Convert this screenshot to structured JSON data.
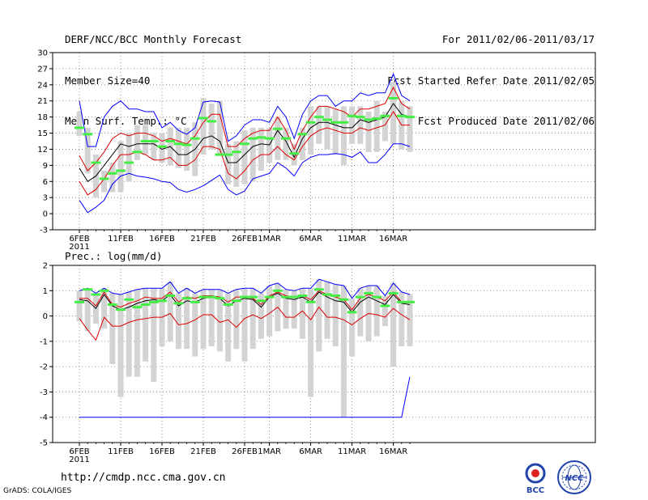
{
  "header": {
    "left": [
      "DERF/NCC/BCC Monthly Forecast",
      "Member Size=40",
      "Mean Surf. Temp.: °C"
    ],
    "right": [
      "For 2011/02/06-2011/03/17",
      "Fcst Started Refer Date 2011/02/05",
      "Fcst Produced Date 2011/02/06"
    ]
  },
  "footer": {
    "url": "http://cmdp.ncc.cma.gov.cn",
    "credit": "GrADS: COLA/IGES",
    "logo_left_text": "BCC",
    "logo_right_text": "NCC"
  },
  "colors": {
    "max_line": "#0000ff",
    "pct_line": "#dd0000",
    "mean_line": "#000000",
    "median_mark": "#44ee44",
    "box": "#d3d3d3"
  },
  "chart_data": [
    {
      "id": "temp",
      "type": "line",
      "title": "Mean Surf. Temp.: °C",
      "ylim": [
        -3,
        30
      ],
      "yticks": [
        -3,
        0,
        3,
        6,
        9,
        12,
        15,
        18,
        21,
        24,
        27,
        30
      ],
      "xticks": [
        {
          "day": 0,
          "label": "6FEB"
        },
        {
          "day": 5,
          "label": "11FEB"
        },
        {
          "day": 10,
          "label": "16FEB"
        },
        {
          "day": 15,
          "label": "21FEB"
        },
        {
          "day": 20,
          "label": "26FEB"
        },
        {
          "day": 23,
          "label": "1MAR"
        },
        {
          "day": 28,
          "label": "6MAR"
        },
        {
          "day": 33,
          "label": "11MAR"
        },
        {
          "day": 38,
          "label": "16MAR"
        }
      ],
      "year_label": "2011",
      "grid": true,
      "series": [
        {
          "name": "max",
          "values": [
            2.5,
            0.2,
            1.2,
            2.5,
            5.5,
            7,
            7.5,
            7,
            6.8,
            6.5,
            6,
            5.8,
            4.5,
            4,
            4.5,
            5.2,
            6.2,
            7.2,
            4.5,
            3.5,
            4.2,
            6.5,
            7,
            7.5,
            9.5,
            8.5,
            7,
            9.5,
            10.5,
            11,
            11,
            11.2,
            11,
            10.5,
            11.5,
            9.5,
            9.5,
            11,
            13,
            13,
            12.5
          ]
        },
        {
          "name": "p90",
          "values": [
            21,
            12.5,
            12.5,
            18,
            20,
            21,
            19.5,
            19.5,
            19,
            19,
            16,
            17,
            15.5,
            14.8,
            16,
            20.8,
            21,
            20.8,
            13.5,
            14.5,
            16.5,
            17.5,
            17.5,
            17,
            20,
            18,
            14,
            18.5,
            21,
            22,
            22,
            20,
            21,
            21,
            22.5,
            22,
            22.5,
            22.5,
            26,
            22,
            21
          ]
        },
        {
          "name": "p75",
          "values": [
            10.8,
            8,
            9.5,
            11.5,
            14,
            15,
            14.5,
            15,
            15,
            14.5,
            13.5,
            14,
            13.5,
            13,
            14.5,
            17,
            18.5,
            18.5,
            12.5,
            12.5,
            14,
            15,
            15.5,
            15.5,
            18,
            15.5,
            12,
            15.5,
            18,
            20,
            20,
            19.5,
            19,
            18,
            19.5,
            19.5,
            20,
            20.5,
            23.5,
            20.5,
            19.5
          ]
        },
        {
          "name": "mean",
          "values": [
            8.5,
            6,
            7,
            9,
            11,
            13,
            12.5,
            13,
            13,
            13,
            12,
            12.5,
            11,
            11,
            12,
            14,
            14.5,
            13.5,
            9.5,
            9.5,
            11,
            12.5,
            13,
            12.8,
            15.5,
            13.5,
            10.5,
            14,
            16,
            17,
            17,
            16.5,
            16,
            16,
            17.5,
            17,
            17.5,
            18,
            20.5,
            18.5,
            18
          ]
        },
        {
          "name": "p25",
          "values": [
            6,
            3.5,
            4.5,
            6.5,
            9,
            11,
            11,
            11.5,
            11,
            10,
            10,
            10.5,
            9,
            9,
            10,
            12.5,
            12.5,
            12,
            7.5,
            6.5,
            8,
            10,
            11,
            11,
            12.5,
            11,
            10,
            12.5,
            14.5,
            15.5,
            16,
            15.5,
            15,
            15,
            16,
            15.5,
            16,
            16.5,
            19,
            16.5,
            16.5
          ]
        }
      ],
      "medians": [
        16,
        14.8,
        9.5,
        6.5,
        7.5,
        8,
        9.5,
        11.5,
        13.5,
        13.5,
        12.5,
        13.5,
        13,
        12.8,
        14,
        17.8,
        17.2,
        11,
        11,
        11.5,
        13,
        14,
        14.2,
        14,
        15.8,
        14,
        11.2,
        14.8,
        17,
        18,
        17.5,
        17,
        17,
        18.2,
        18,
        17.5,
        17.7,
        18.2,
        21.5,
        18.2,
        18
      ],
      "box_low": [
        14.5,
        7.5,
        3,
        4,
        4,
        4,
        6,
        10,
        11,
        10,
        9.5,
        9,
        8.5,
        8,
        7,
        11,
        12,
        11,
        5.5,
        5,
        5.5,
        6,
        8,
        9.5,
        10,
        10,
        9,
        10,
        11,
        13,
        12,
        11,
        9,
        13,
        13,
        11.5,
        11.5,
        13.5,
        13,
        12,
        11.5
      ],
      "box_high": [
        19,
        16,
        11,
        8,
        9.5,
        13.5,
        15,
        16.5,
        16.5,
        15,
        15,
        16,
        16,
        16,
        17,
        21.5,
        20.5,
        21,
        13,
        13.5,
        15.5,
        16,
        16,
        16,
        18,
        16,
        13,
        16,
        20,
        20,
        20,
        19.5,
        20,
        20,
        20,
        19,
        21,
        19,
        24.5,
        21,
        20
      ]
    },
    {
      "id": "prec",
      "type": "line",
      "title": "Prec.: log(mm/d)",
      "ylim": [
        -5,
        2
      ],
      "yticks": [
        -5,
        -4,
        -3,
        -2,
        -1,
        0,
        1,
        2
      ],
      "xticks": [
        {
          "day": 0,
          "label": "6FEB"
        },
        {
          "day": 5,
          "label": "11FEB"
        },
        {
          "day": 10,
          "label": "16FEB"
        },
        {
          "day": 15,
          "label": "21FEB"
        },
        {
          "day": 20,
          "label": "26FEB"
        },
        {
          "day": 23,
          "label": "1MAR"
        },
        {
          "day": 28,
          "label": "6MAR"
        },
        {
          "day": 33,
          "label": "11MAR"
        },
        {
          "day": 38,
          "label": "16MAR"
        }
      ],
      "year_label": "2011",
      "grid": true,
      "series": [
        {
          "name": "max",
          "values": [
            -4,
            -4,
            -4,
            -4,
            -4,
            -4,
            -4,
            -4,
            -4,
            -4,
            -4,
            -4,
            -4,
            -4,
            -4,
            -4,
            -4,
            -4,
            -4,
            -4,
            -4,
            -4,
            -4,
            -4,
            -4,
            -4,
            -4,
            -4,
            -4,
            -4,
            -4,
            -4,
            -4,
            -4,
            -4,
            -4,
            -4,
            -4,
            -4,
            -4,
            -2.4
          ]
        },
        {
          "name": "p90",
          "values": [
            1,
            1.1,
            0.9,
            1.1,
            0.9,
            0.85,
            0.95,
            1.05,
            1.1,
            1.1,
            1.1,
            1.35,
            0.9,
            1.1,
            0.9,
            1.05,
            1.05,
            1.05,
            0.9,
            1.05,
            1.1,
            1.1,
            0.9,
            1.2,
            1.3,
            1.05,
            1,
            1.1,
            1.1,
            1.45,
            1.35,
            1.25,
            1.2,
            0.7,
            1.1,
            1.2,
            1.2,
            0.8,
            1.3,
            0.95,
            0.85
          ]
        },
        {
          "name": "p75",
          "values": [
            0.7,
            0.7,
            0.4,
            0.95,
            0.45,
            0.35,
            0.5,
            0.6,
            0.75,
            0.7,
            0.7,
            0.95,
            0.55,
            0.75,
            0.7,
            0.8,
            0.8,
            0.75,
            0.55,
            0.75,
            0.75,
            0.7,
            0.45,
            0.8,
            0.95,
            0.8,
            0.75,
            0.8,
            0.65,
            1,
            0.85,
            0.75,
            0.65,
            0.25,
            0.7,
            0.85,
            0.75,
            0.6,
            0.95,
            0.55,
            0.55
          ]
        },
        {
          "name": "mean",
          "values": [
            0.65,
            0.6,
            0.3,
            0.85,
            0.4,
            0.25,
            0.35,
            0.5,
            0.6,
            0.65,
            0.6,
            0.85,
            0.4,
            0.6,
            0.55,
            0.7,
            0.75,
            0.7,
            0.4,
            0.6,
            0.7,
            0.65,
            0.35,
            0.75,
            0.9,
            0.7,
            0.65,
            0.75,
            0.55,
            0.95,
            0.75,
            0.6,
            0.55,
            0.15,
            0.55,
            0.75,
            0.6,
            0.45,
            0.85,
            0.5,
            0.45
          ]
        },
        {
          "name": "p25",
          "values": [
            -0.1,
            -0.55,
            -0.95,
            -0.05,
            -0.4,
            -0.4,
            -0.25,
            -0.15,
            -0.1,
            -0.05,
            -0.05,
            0.1,
            -0.35,
            -0.3,
            -0.15,
            0.05,
            0.05,
            -0.25,
            -0.15,
            -0.45,
            -0.1,
            0.05,
            -0.1,
            0.1,
            0.35,
            -0.05,
            -0.05,
            0.2,
            -0.15,
            0.35,
            -0.05,
            -0.05,
            -0.15,
            -0.35,
            -0.1,
            0.1,
            0.05,
            -0.05,
            0.3,
            0.05,
            -0.15
          ]
        }
      ],
      "medians": [
        0.55,
        1.05,
        0.85,
        1,
        0.45,
        0.25,
        0.65,
        0.35,
        0.45,
        0.55,
        0.6,
        0.8,
        0.5,
        0.7,
        0.55,
        0.75,
        0.75,
        0.7,
        0.45,
        0.6,
        0.75,
        0.75,
        0.6,
        0.75,
        1,
        0.75,
        0.75,
        0.8,
        0.55,
        1.05,
        0.85,
        0.8,
        0.65,
        0.15,
        0.75,
        0.9,
        0.75,
        0.4,
        0.9,
        0.55,
        0.55
      ],
      "box_low": [
        -0.2,
        -0.6,
        -0.3,
        -0.5,
        -1.9,
        -3.2,
        -2.4,
        -2.4,
        -1.8,
        -2.6,
        -1.2,
        -1,
        -1.3,
        -1.3,
        -1.6,
        -1.3,
        -1.2,
        -1.4,
        -1.8,
        -1.3,
        -1.8,
        -1.3,
        -0.9,
        -0.8,
        -0.6,
        -0.5,
        -0.5,
        -0.9,
        -3.2,
        -1.4,
        -0.9,
        -1.2,
        -4,
        -1.6,
        -0.8,
        -1,
        -0.8,
        -0.4,
        -2,
        -1.2,
        -1.2
      ]
    }
  ]
}
